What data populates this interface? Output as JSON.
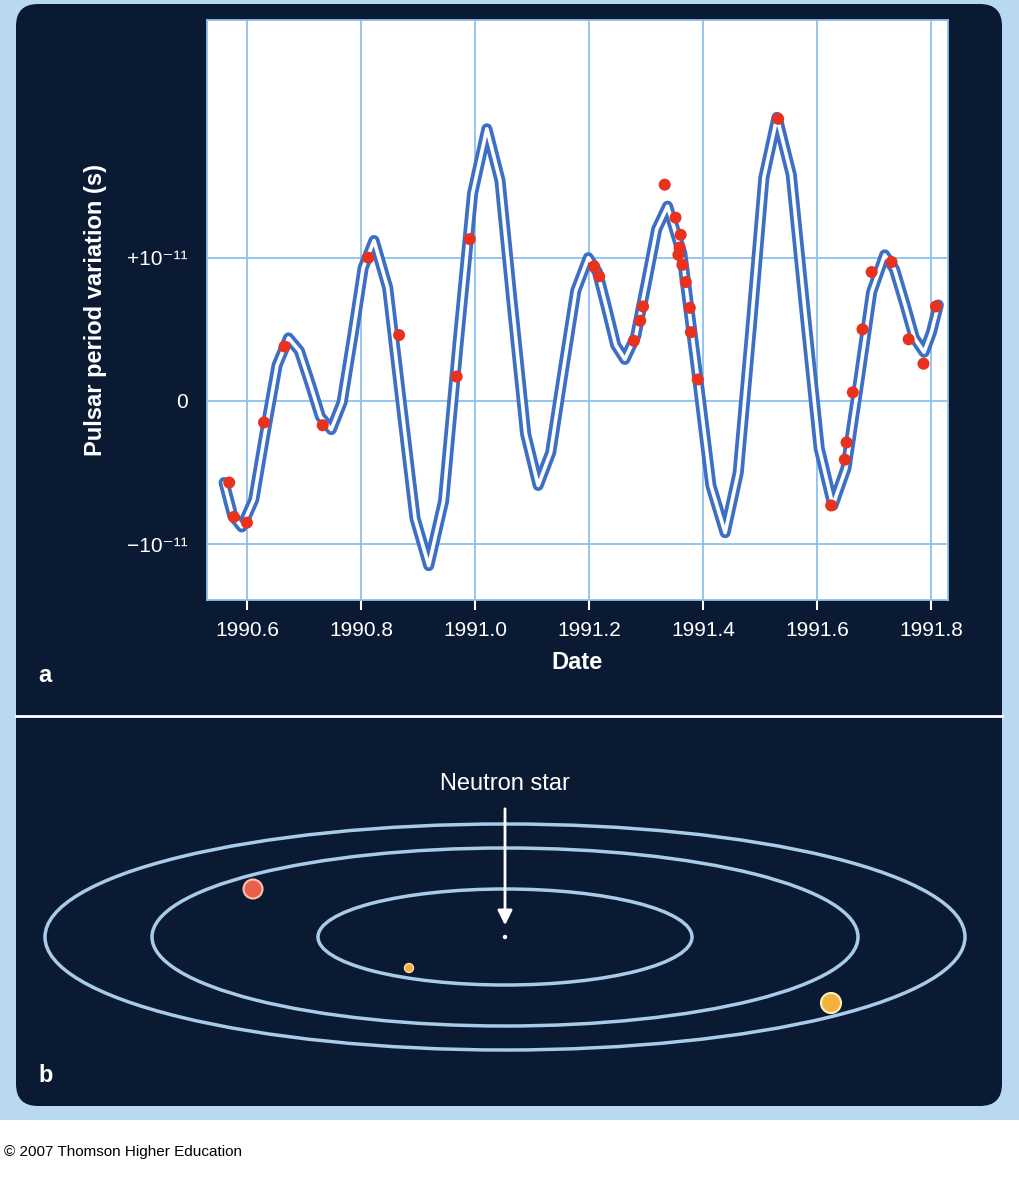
{
  "chart_data": {
    "type": "line",
    "panel_label": "a",
    "xlabel": "Date",
    "ylabel": "Pulsar period variation (s)",
    "xlim": [
      1990.53,
      1991.83
    ],
    "xticks": [
      1990.6,
      1990.8,
      1991.0,
      1991.2,
      1991.4,
      1991.6,
      1991.8
    ],
    "ylim": [
      -1.39e-11,
      2.66e-11
    ],
    "yticks": [
      {
        "value": -1e-11,
        "label": "−10⁻¹¹"
      },
      0,
      {
        "value": 1e-11,
        "label": "+10⁻¹¹"
      }
    ],
    "grid": true,
    "series": [
      {
        "type": "line",
        "color": "#3d6fc4",
        "x": [
          1990.56,
          1990.575,
          1990.591,
          1990.612,
          1990.632,
          1990.653,
          1990.673,
          1990.692,
          1990.711,
          1990.729,
          1990.748,
          1990.767,
          1990.786,
          1990.804,
          1990.823,
          1990.847,
          1990.871,
          1990.895,
          1990.919,
          1990.945,
          1990.97,
          1990.996,
          1991.021,
          1991.044,
          1991.066,
          1991.089,
          1991.111,
          1991.133,
          1991.155,
          1991.177,
          1991.199,
          1991.215,
          1991.231,
          1991.247,
          1991.263,
          1991.282,
          1991.301,
          1991.319,
          1991.338,
          1991.363,
          1991.389,
          1991.414,
          1991.439,
          1991.462,
          1991.485,
          1991.507,
          1991.53,
          1991.555,
          1991.579,
          1991.604,
          1991.628,
          1991.651,
          1991.674,
          1991.696,
          1991.719,
          1991.736,
          1991.754,
          1991.771,
          1991.788,
          1991.801,
          1991.813
        ],
        "values": [
          -5.7e-12,
          -8e-12,
          -8.8e-12,
          -6.9e-12,
          -2.2e-12,
          2.5e-12,
          4.4e-12,
          3.5e-12,
          1.2e-12,
          -1.1e-12,
          -2e-12,
          -1e-13,
          4.6e-12,
          9.3e-12,
          1.12e-11,
          7.9e-12,
          -2e-13,
          -8.2e-12,
          -1.15e-11,
          -7e-12,
          3.8e-12,
          1.45e-11,
          1.9e-11,
          1.54e-11,
          6.6e-12,
          -2.3e-12,
          -5.9e-12,
          -3.6e-12,
          2.1e-12,
          7.7e-12,
          1e-11,
          9e-12,
          6.5e-12,
          3.9e-12,
          2.9e-12,
          4.5e-12,
          8.3e-12,
          1.2e-11,
          1.36e-11,
          1.03e-11,
          2.2e-12,
          -5.9e-12,
          -9.2e-12,
          -5e-12,
          5.3e-12,
          1.56e-11,
          1.98e-11,
          1.58e-11,
          6.3e-12,
          -3.3e-12,
          -7.3e-12,
          -4.7e-12,
          1.5e-12,
          7.6e-12,
          1.02e-11,
          9.2e-12,
          6.8e-12,
          4.4e-12,
          3.4e-12,
          4.8e-12,
          6.7e-12
        ]
      },
      {
        "type": "scatter",
        "color": "#e8321e",
        "marker": "o",
        "x": [
          1990.569,
          1990.577,
          1990.6,
          1990.63,
          1990.666,
          1990.733,
          1990.813,
          1990.867,
          1990.968,
          1990.991,
          1991.209,
          1991.218,
          1991.279,
          1991.29,
          1991.295,
          1991.333,
          1991.352,
          1991.361,
          1991.359,
          1991.357,
          1991.364,
          1991.37,
          1991.377,
          1991.379,
          1991.391,
          1991.532,
          1991.625,
          1991.649,
          1991.652,
          1991.663,
          1991.68,
          1991.696,
          1991.731,
          1991.761,
          1991.787,
          1991.809
        ],
        "values": [
          -5.7e-12,
          -8.1e-12,
          -8.5e-12,
          -1.5e-12,
          3.8e-12,
          -1.7e-12,
          1e-11,
          4.6e-12,
          1.7e-12,
          1.13e-11,
          9.4e-12,
          8.7e-12,
          4.2e-12,
          5.6e-12,
          6.6e-12,
          1.51e-11,
          1.28e-11,
          1.16e-11,
          1.07e-11,
          1.02e-11,
          9.5e-12,
          8.3e-12,
          6.5e-12,
          4.8e-12,
          1.5e-12,
          1.97e-11,
          -7.3e-12,
          -4.1e-12,
          -2.9e-12,
          6e-13,
          5e-12,
          9e-12,
          9.7e-12,
          4.3e-12,
          2.6e-12,
          6.6e-12
        ]
      }
    ]
  },
  "diagram": {
    "panel_label": "b",
    "label": "Neutron star"
  },
  "footer": "© 2007 Thomson Higher Education"
}
